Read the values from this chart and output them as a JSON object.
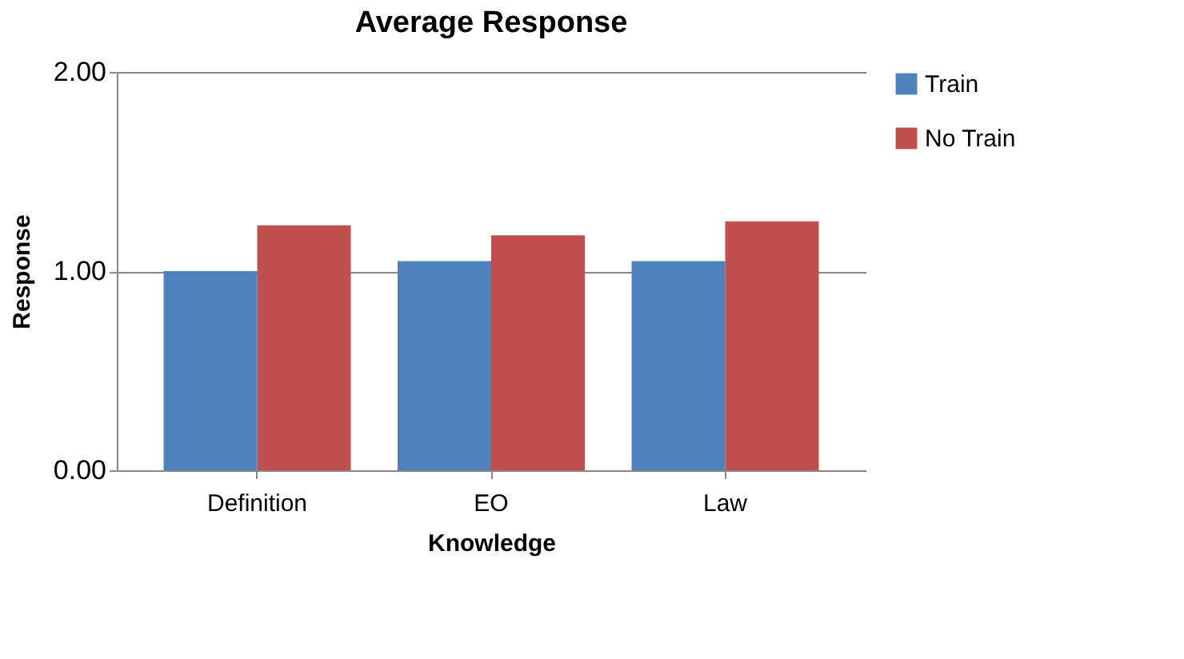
{
  "chart_data": {
    "type": "bar",
    "title": "Average Response",
    "xlabel": "Knowledge",
    "ylabel": "Response",
    "categories": [
      "Definition",
      "EO",
      "Law"
    ],
    "series": [
      {
        "name": "Train",
        "color": "#4f81bd",
        "values": [
          1.0,
          1.05,
          1.05
        ]
      },
      {
        "name": "No Train",
        "color": "#c0504d",
        "values": [
          1.23,
          1.18,
          1.25
        ]
      }
    ],
    "ylim": [
      0,
      2
    ],
    "yticks": [
      {
        "value": 0,
        "label": "0.00"
      },
      {
        "value": 1,
        "label": "1.00"
      },
      {
        "value": 2,
        "label": "2.00"
      }
    ],
    "grid": "y",
    "legend": "right"
  }
}
